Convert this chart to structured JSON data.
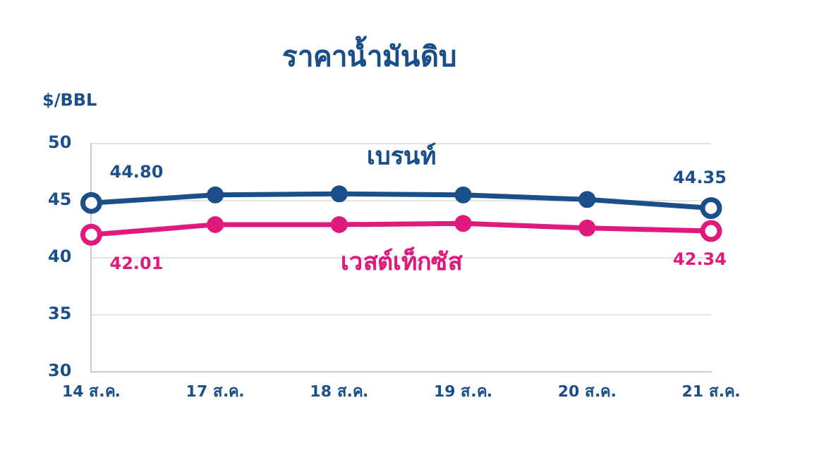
{
  "chart_data": {
    "type": "line",
    "title": "ราคาน้ำมันดิบ",
    "ylabel": "$/BBL",
    "categories": [
      "14 ส.ค.",
      "17 ส.ค.",
      "18 ส.ค.",
      "19 ส.ค.",
      "20 ส.ค.",
      "21 ส.ค."
    ],
    "series": [
      {
        "name": "เบรนท์",
        "color": "#1a4f8a",
        "values": [
          44.8,
          45.5,
          45.6,
          45.5,
          45.1,
          44.35
        ],
        "value_labels": [
          "44.80",
          null,
          null,
          null,
          null,
          "44.35"
        ]
      },
      {
        "name": "เวสต์เท็กซัส",
        "color": "#e0197d",
        "values": [
          42.01,
          42.9,
          42.9,
          43.0,
          42.6,
          42.34
        ],
        "value_labels": [
          "42.01",
          null,
          null,
          null,
          null,
          "42.34"
        ]
      }
    ],
    "ylim": [
      30,
      50
    ],
    "yticks": [
      30,
      35,
      40,
      45,
      50
    ],
    "grid": "y",
    "legend": false,
    "marker": "circle",
    "line_style": "solid"
  }
}
